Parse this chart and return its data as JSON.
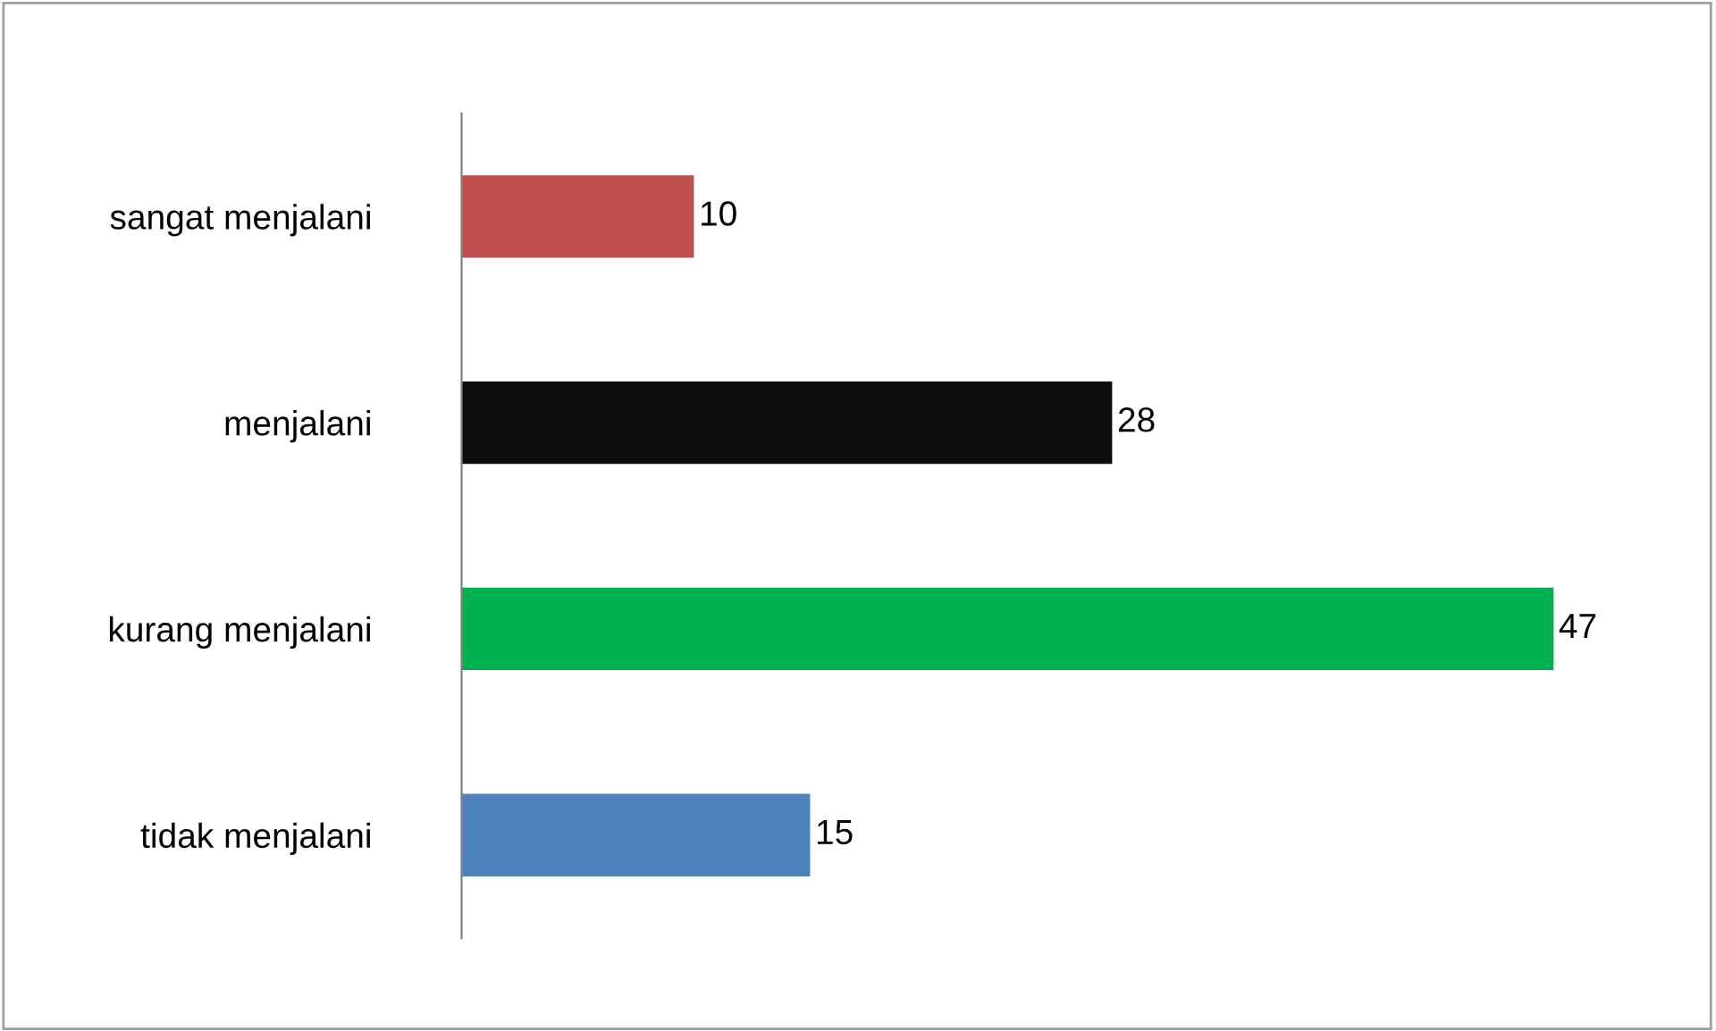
{
  "chart_data": {
    "type": "bar",
    "orientation": "horizontal",
    "categories": [
      "sangat menjalani",
      "menjalani",
      "kurang menjalani",
      "tidak menjalani"
    ],
    "values": [
      10,
      28,
      47,
      15
    ],
    "colors": [
      "#c0504d",
      "#0d0d0d",
      "#00b050",
      "#4f81bd"
    ],
    "tick_labels": "y",
    "data_labels": true,
    "grid": false,
    "legend": false
  }
}
